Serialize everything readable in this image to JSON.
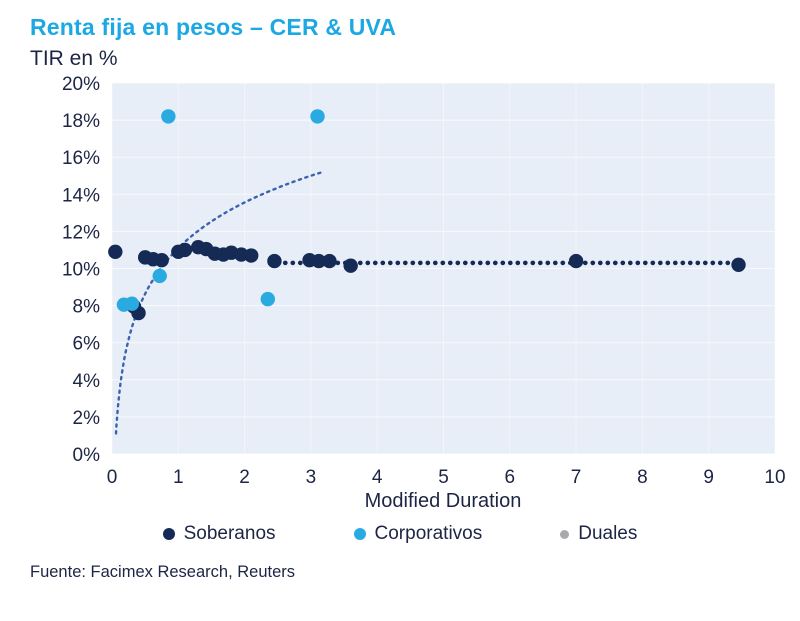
{
  "page": {
    "title": "Renta fija en pesos – CER & UVA",
    "subtitle": "TIR en %",
    "source": "Fuente: Facimex Research, Reuters"
  },
  "chart_data": {
    "type": "scatter",
    "title": "Renta fija en pesos – CER & UVA",
    "ylabel": "TIR en %",
    "xlabel": "Modified Duration",
    "xlim": [
      0,
      10
    ],
    "ylim": [
      0,
      20
    ],
    "plot_bg": "#e8eef7",
    "grid": true,
    "legend_position": "bottom",
    "xticks": [
      {
        "v": 0,
        "label": "0"
      },
      {
        "v": 1,
        "label": "1"
      },
      {
        "v": 2,
        "label": "2"
      },
      {
        "v": 3,
        "label": "3"
      },
      {
        "v": 4,
        "label": "4"
      },
      {
        "v": 5,
        "label": "5"
      },
      {
        "v": 6,
        "label": "6"
      },
      {
        "v": 7,
        "label": "7"
      },
      {
        "v": 8,
        "label": "8"
      },
      {
        "v": 9,
        "label": "9"
      },
      {
        "v": 10,
        "label": "10"
      }
    ],
    "yticks": [
      {
        "v": 0,
        "label": "0%"
      },
      {
        "v": 2,
        "label": "2%"
      },
      {
        "v": 4,
        "label": "4%"
      },
      {
        "v": 6,
        "label": "6%"
      },
      {
        "v": 8,
        "label": "8%"
      },
      {
        "v": 10,
        "label": "10%"
      },
      {
        "v": 12,
        "label": "12%"
      },
      {
        "v": 14,
        "label": "14%"
      },
      {
        "v": 16,
        "label": "16%"
      },
      {
        "v": 18,
        "label": "18%"
      },
      {
        "v": 20,
        "label": "20%"
      }
    ],
    "series": [
      {
        "name": "Soberanos",
        "color": "#152a55",
        "points": [
          [
            0.05,
            10.9
          ],
          [
            0.33,
            7.95
          ],
          [
            0.4,
            7.6
          ],
          [
            0.5,
            10.6
          ],
          [
            0.62,
            10.5
          ],
          [
            0.75,
            10.45
          ],
          [
            1.0,
            10.9
          ],
          [
            1.1,
            11.0
          ],
          [
            1.3,
            11.15
          ],
          [
            1.42,
            11.05
          ],
          [
            1.55,
            10.8
          ],
          [
            1.68,
            10.75
          ],
          [
            1.8,
            10.85
          ],
          [
            1.95,
            10.75
          ],
          [
            2.1,
            10.7
          ],
          [
            2.45,
            10.4
          ],
          [
            2.98,
            10.45
          ],
          [
            3.12,
            10.4
          ],
          [
            3.28,
            10.4
          ],
          [
            3.6,
            10.15
          ],
          [
            7.0,
            10.4
          ],
          [
            9.45,
            10.2
          ]
        ]
      },
      {
        "name": "Corporativos",
        "color": "#29abe2",
        "points": [
          [
            0.18,
            8.05
          ],
          [
            0.3,
            8.1
          ],
          [
            0.72,
            9.6
          ],
          [
            0.85,
            18.2
          ],
          [
            2.35,
            8.35
          ],
          [
            3.1,
            18.2
          ]
        ]
      },
      {
        "name": "Duales",
        "color": "#a7a9ac",
        "points": []
      }
    ],
    "trendline": {
      "style": "dotted",
      "model": "log",
      "a": 11.1,
      "b": 3.55,
      "x_start": 0.06,
      "x_end": 3.2,
      "color": "#3c62b0"
    },
    "dotted_hline": {
      "y": 10.3,
      "x_start": 2.5,
      "x_end": 9.45,
      "color": "#152a55"
    }
  }
}
